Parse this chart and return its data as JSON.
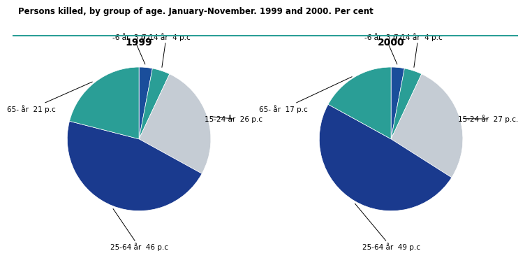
{
  "title": "Persons killed, by group of age. January-November. 1999 and 2000. Per cent",
  "chart1_title": "1999",
  "chart2_title": "2000",
  "values_1999": [
    3,
    4,
    26,
    46,
    21
  ],
  "values_2000": [
    3,
    4,
    27,
    49,
    17
  ],
  "colors": [
    "#1a4e9b",
    "#2a9e96",
    "#c5ccd4",
    "#1a3a8e",
    "#2a9e96"
  ],
  "line_color": "#2a9e96",
  "background_color": "#ffffff",
  "title_color": "#000000",
  "title_fontsize": 8.5,
  "subtitle_fontsize": 10,
  "ann_fontsize": 7.5,
  "ann_1999": [
    [
      "-6 år  3 p.c.",
      0,
      [
        -0.08,
        1.42
      ]
    ],
    [
      "7-14 år  4 p.c",
      1,
      [
        0.38,
        1.42
      ]
    ],
    [
      "15-24 år  26 p.c",
      2,
      [
        1.32,
        0.28
      ]
    ],
    [
      "25-64 år  46 p.c",
      3,
      [
        0.0,
        -1.5
      ]
    ],
    [
      "65- år  21 p.c",
      4,
      [
        -1.5,
        0.42
      ]
    ]
  ],
  "ann_2000": [
    [
      "-6 år  3 p.c.",
      0,
      [
        -0.08,
        1.42
      ]
    ],
    [
      "7-14 år  4 p.c",
      1,
      [
        0.38,
        1.42
      ]
    ],
    [
      "15-24 år  27 p.c.",
      2,
      [
        1.35,
        0.28
      ]
    ],
    [
      "25-64 år  49 p.c",
      3,
      [
        0.0,
        -1.5
      ]
    ],
    [
      "65- år  17 p.c",
      4,
      [
        -1.5,
        0.42
      ]
    ]
  ]
}
